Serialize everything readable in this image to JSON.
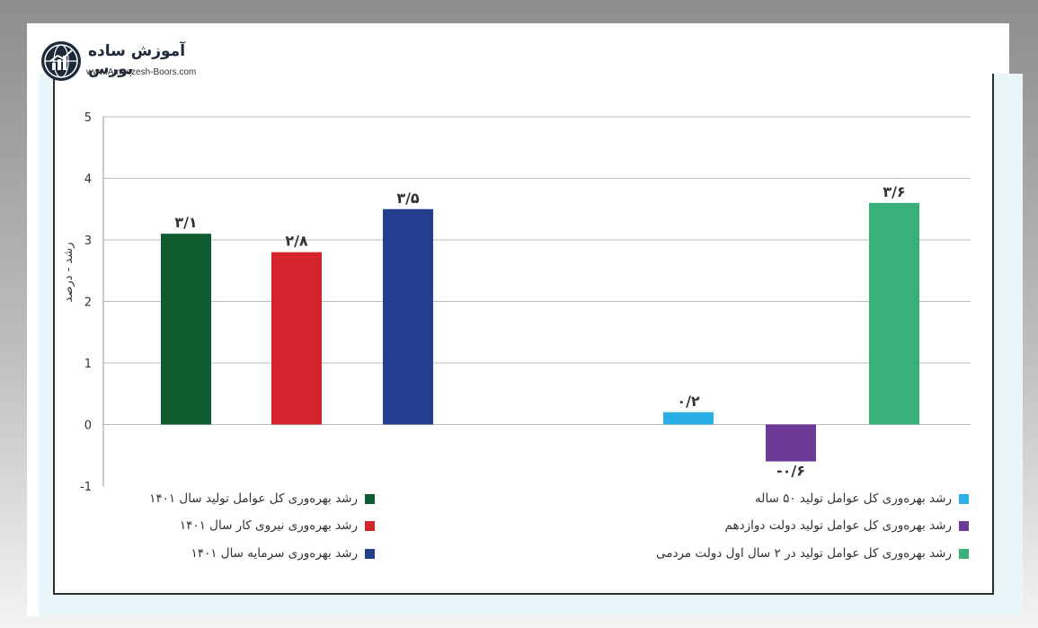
{
  "logo": {
    "title": "آموزش ساده بورس",
    "url": "www.Amoozesh-Boors.com"
  },
  "chart_data": {
    "type": "bar",
    "ylabel": "رشد - درصد",
    "ylim": [
      -1,
      5
    ],
    "yticks": [
      {
        "value": 5,
        "label": "5"
      },
      {
        "value": 4,
        "label": "4"
      },
      {
        "value": 3,
        "label": "3"
      },
      {
        "value": 2,
        "label": "2"
      },
      {
        "value": 1,
        "label": "1"
      },
      {
        "value": 0,
        "label": "0"
      },
      {
        "value": -1,
        "label": "-1"
      }
    ],
    "grid": true,
    "bars": [
      {
        "value": 3.1,
        "label": "۳/۱",
        "color": "#0f5c31"
      },
      {
        "value": 2.8,
        "label": "۲/۸",
        "color": "#d3232b"
      },
      {
        "value": 3.5,
        "label": "۳/۵",
        "color": "#233f8d"
      },
      {
        "value": 0.2,
        "label": "۰/۲",
        "color": "#29aee6"
      },
      {
        "value": -0.6,
        "label": "-۰/۶",
        "color": "#6e3a97"
      },
      {
        "value": 3.6,
        "label": "۳/۶",
        "color": "#37b179"
      }
    ],
    "legend": [
      {
        "label": "رشد بهره‌وری کل عوامل تولید سال ۱۴۰۱",
        "color": "#0f5c31"
      },
      {
        "label": "رشد بهره‌وری نیروی کار سال ۱۴۰۱",
        "color": "#d3232b"
      },
      {
        "label": "رشد بهره‌وری سرمایه سال ۱۴۰۱",
        "color": "#233f8d"
      },
      {
        "label": "رشد بهره‌وری کل عوامل تولید ۵۰ ساله",
        "color": "#29aee6"
      },
      {
        "label": "رشد بهره‌وری کل عوامل تولید دولت دوازدهم",
        "color": "#6e3a97"
      },
      {
        "label": "رشد بهره‌وری کل عوامل تولید در ۲ سال اول دولت مردمی",
        "color": "#37b179"
      }
    ]
  }
}
